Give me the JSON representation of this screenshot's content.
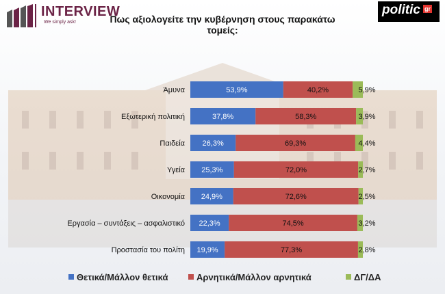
{
  "header": {
    "brand_left_name": "INTERVIEW",
    "brand_left_tagline": "We simply ask!",
    "brand_right_name": "politic",
    "brand_right_suffix": "gr"
  },
  "chart_data": {
    "type": "bar",
    "stacked": true,
    "orientation": "horizontal",
    "title": "Πως αξιολογείτε την κυβέρνηση στους παρακάτω τομείς:",
    "categories": [
      "Άμυνα",
      "Εξωτερική πολιτική",
      "Παιδεία",
      "Υγεία",
      "Οικονομία",
      "Εργασία – συντάξεις – ασφαλιστικό",
      "Προστασία του πολίτη"
    ],
    "series": [
      {
        "name": "Θετικά/Μάλλον θετικά",
        "color": "#4472c4",
        "values": [
          53.9,
          37.8,
          26.3,
          25.3,
          24.9,
          22.3,
          19.9
        ],
        "labels": [
          "53,9%",
          "37,8%",
          "26,3%",
          "25,3%",
          "24,9%",
          "22,3%",
          "19,9%"
        ]
      },
      {
        "name": "Αρνητικά/Μάλλον αρνητικά",
        "color": "#c0504d",
        "values": [
          40.2,
          58.3,
          69.3,
          72.0,
          72.6,
          74.5,
          77.3
        ],
        "labels": [
          "40,2%",
          "58,3%",
          "69,3%",
          "72,0%",
          "72,6%",
          "74,5%",
          "77,3%"
        ]
      },
      {
        "name": "ΔΓ/ΔΑ",
        "color": "#9bbb59",
        "values": [
          5.9,
          3.9,
          4.4,
          2.7,
          2.5,
          3.2,
          2.8
        ],
        "labels": [
          "5,9%",
          "3,9%",
          "4,4%",
          "2,7%",
          "2,5%",
          "3,2%",
          "2,8%"
        ]
      }
    ],
    "xlim": [
      0,
      100
    ],
    "grid": false,
    "legend_position": "bottom"
  }
}
